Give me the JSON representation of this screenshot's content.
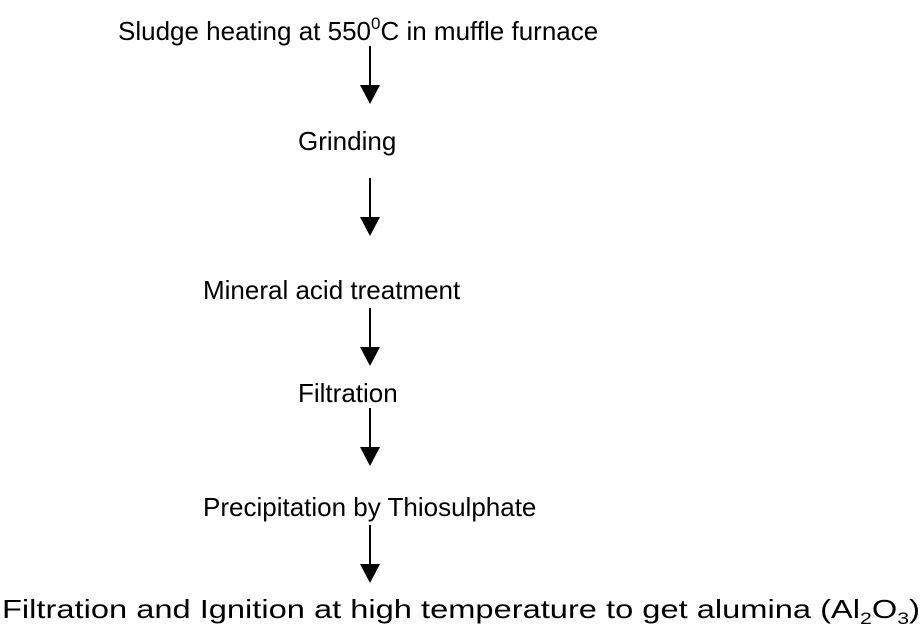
{
  "nodes": [
    {
      "parts": [
        "Sludge heating at 550",
        "0",
        "C in muffle furnace"
      ]
    },
    {
      "label": "Grinding"
    },
    {
      "label": "Mineral acid treatment"
    },
    {
      "label": "Filtration"
    },
    {
      "label": "Precipitation by Thiosulphate"
    },
    {
      "parts": [
        "Filtration and Ignition at high temperature to get  alumina (Al",
        "2",
        "O",
        "3",
        ")"
      ]
    }
  ]
}
